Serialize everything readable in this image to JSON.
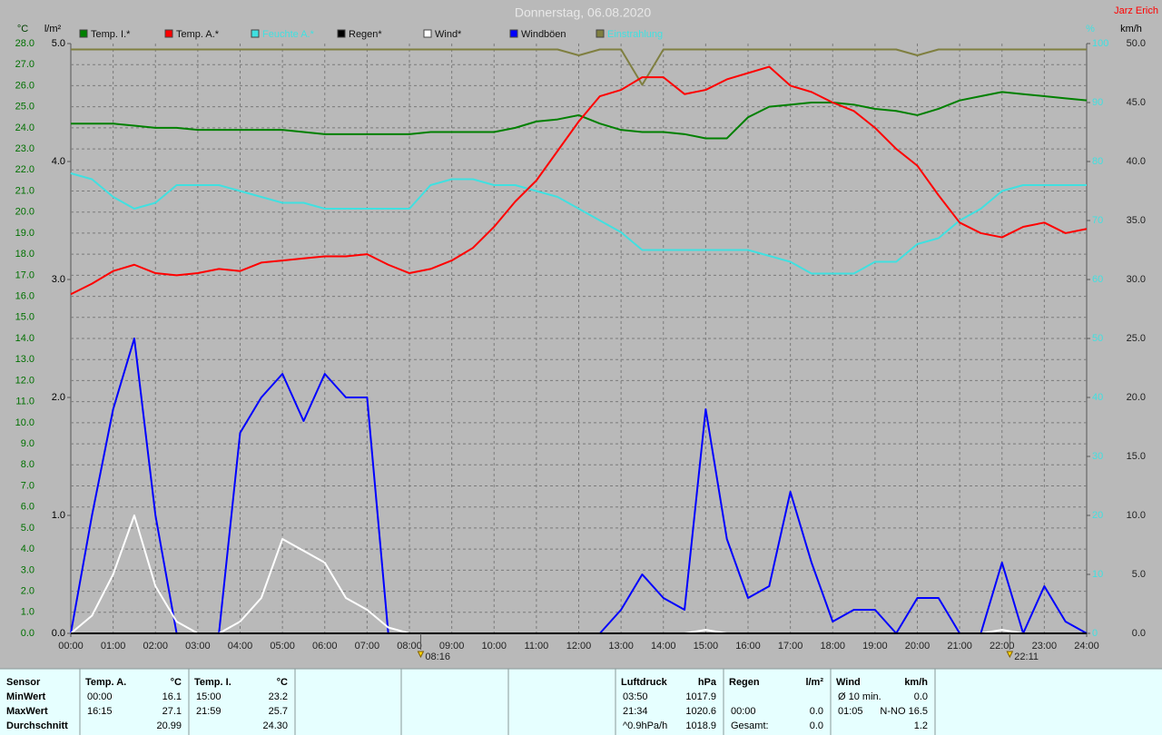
{
  "chart_data": {
    "type": "line",
    "title": "Donnerstag, 06.08.2020",
    "author": "Jarz Erich",
    "ylabel": "°C",
    "y4label": "l/m²",
    "y3label": "%",
    "y2label": "km/h",
    "xlim": [
      0,
      24
    ],
    "xticks": [
      {
        "value": 0,
        "label": "00:00"
      },
      {
        "value": 1,
        "label": "01:00"
      },
      {
        "value": 2,
        "label": "02:00"
      },
      {
        "value": 3,
        "label": "03:00"
      },
      {
        "value": 4,
        "label": "04:00"
      },
      {
        "value": 5,
        "label": "05:00"
      },
      {
        "value": 6,
        "label": "06:00"
      },
      {
        "value": 7,
        "label": "07:00"
      },
      {
        "value": 8,
        "label": "08:00"
      },
      {
        "value": 9,
        "label": "09:00"
      },
      {
        "value": 10,
        "label": "10:00"
      },
      {
        "value": 11,
        "label": "11:00"
      },
      {
        "value": 12,
        "label": "12:00"
      },
      {
        "value": 13,
        "label": "13:00"
      },
      {
        "value": 14,
        "label": "14:00"
      },
      {
        "value": 15,
        "label": "15:00"
      },
      {
        "value": 16,
        "label": "16:00"
      },
      {
        "value": 17,
        "label": "17:00"
      },
      {
        "value": 18,
        "label": "18:00"
      },
      {
        "value": 19,
        "label": "19:00"
      },
      {
        "value": 20,
        "label": "20:00"
      },
      {
        "value": 21,
        "label": "21:00"
      },
      {
        "value": 22,
        "label": "22:00"
      },
      {
        "value": 23,
        "label": "23:00"
      },
      {
        "value": 24,
        "label": "24:00"
      }
    ],
    "ylim": [
      0,
      28
    ],
    "yticks": [
      {
        "value": 0,
        "label": "0.0"
      },
      {
        "value": 1,
        "label": "1.0"
      },
      {
        "value": 2,
        "label": "2.0"
      },
      {
        "value": 3,
        "label": "3.0"
      },
      {
        "value": 4,
        "label": "4.0"
      },
      {
        "value": 5,
        "label": "5.0"
      },
      {
        "value": 6,
        "label": "6.0"
      },
      {
        "value": 7,
        "label": "7.0"
      },
      {
        "value": 8,
        "label": "8.0"
      },
      {
        "value": 9,
        "label": "9.0"
      },
      {
        "value": 10,
        "label": "10.0"
      },
      {
        "value": 11,
        "label": "11.0"
      },
      {
        "value": 12,
        "label": "12.0"
      },
      {
        "value": 13,
        "label": "13.0"
      },
      {
        "value": 14,
        "label": "14.0"
      },
      {
        "value": 15,
        "label": "15.0"
      },
      {
        "value": 16,
        "label": "16.0"
      },
      {
        "value": 17,
        "label": "17.0"
      },
      {
        "value": 18,
        "label": "18.0"
      },
      {
        "value": 19,
        "label": "19.0"
      },
      {
        "value": 20,
        "label": "20.0"
      },
      {
        "value": 21,
        "label": "21.0"
      },
      {
        "value": 22,
        "label": "22.0"
      },
      {
        "value": 23,
        "label": "23.0"
      },
      {
        "value": 24,
        "label": "24.0"
      },
      {
        "value": 25,
        "label": "25.0"
      },
      {
        "value": 26,
        "label": "26.0"
      },
      {
        "value": 27,
        "label": "27.0"
      },
      {
        "value": 28,
        "label": "28.0"
      }
    ],
    "y4lim": [
      0,
      5
    ],
    "y4ticks": [
      {
        "value": 0,
        "label": "0.0"
      },
      {
        "value": 1,
        "label": "1.0"
      },
      {
        "value": 2,
        "label": "2.0"
      },
      {
        "value": 3,
        "label": "3.0"
      },
      {
        "value": 4,
        "label": "4.0"
      },
      {
        "value": 5,
        "label": "5.0"
      }
    ],
    "y3lim": [
      0,
      100
    ],
    "y3ticks": [
      0,
      10,
      20,
      30,
      40,
      50,
      60,
      70,
      80,
      90,
      100
    ],
    "y2lim": [
      0,
      50
    ],
    "y2ticks": [
      {
        "value": 0,
        "label": "0.0"
      },
      {
        "value": 5,
        "label": "5.0"
      },
      {
        "value": 10,
        "label": "10.0"
      },
      {
        "value": 15,
        "label": "15.0"
      },
      {
        "value": 20,
        "label": "20.0"
      },
      {
        "value": 25,
        "label": "25.0"
      },
      {
        "value": 30,
        "label": "30.0"
      },
      {
        "value": 35,
        "label": "35.0"
      },
      {
        "value": 40,
        "label": "40.0"
      },
      {
        "value": 45,
        "label": "45.0"
      },
      {
        "value": 50,
        "label": "50.0"
      }
    ],
    "grid": true,
    "x": [
      0,
      0.5,
      1,
      1.5,
      2,
      2.5,
      3,
      3.5,
      4,
      4.5,
      5,
      5.5,
      6,
      6.5,
      7,
      7.5,
      8,
      8.5,
      9,
      9.5,
      10,
      10.5,
      11,
      11.5,
      12,
      12.5,
      13,
      13.5,
      14,
      14.5,
      15,
      15.5,
      16,
      16.5,
      17,
      17.5,
      18,
      18.5,
      19,
      19.5,
      20,
      20.5,
      21,
      21.5,
      22,
      22.5,
      23,
      23.5,
      24
    ],
    "series": [
      {
        "name": "Temp. I.*",
        "color": "#008000",
        "axis": "y",
        "values": [
          24.2,
          24.2,
          24.2,
          24.1,
          24.0,
          24.0,
          23.9,
          23.9,
          23.9,
          23.9,
          23.9,
          23.8,
          23.7,
          23.7,
          23.7,
          23.7,
          23.7,
          23.8,
          23.8,
          23.8,
          23.8,
          24.0,
          24.3,
          24.4,
          24.6,
          24.2,
          23.9,
          23.8,
          23.8,
          23.7,
          23.5,
          23.5,
          24.5,
          25.0,
          25.1,
          25.2,
          25.2,
          25.1,
          24.9,
          24.8,
          24.6,
          24.9,
          25.3,
          25.5,
          25.7,
          25.6,
          25.5,
          25.4,
          25.3
        ]
      },
      {
        "name": "Temp. A.*",
        "color": "#ff0000",
        "axis": "y",
        "values": [
          16.1,
          16.6,
          17.2,
          17.5,
          17.1,
          17.0,
          17.1,
          17.3,
          17.2,
          17.6,
          17.7,
          17.8,
          17.9,
          17.9,
          18.0,
          17.5,
          17.1,
          17.3,
          17.7,
          18.3,
          19.3,
          20.5,
          21.5,
          22.9,
          24.3,
          25.5,
          25.8,
          26.4,
          26.4,
          25.6,
          25.8,
          26.3,
          26.6,
          26.9,
          26.0,
          25.7,
          25.2,
          24.8,
          24.0,
          23.0,
          22.2,
          20.8,
          19.5,
          19.0,
          18.8,
          19.3,
          19.5,
          19.0,
          19.2
        ]
      },
      {
        "name": "Feuchte A.*",
        "color": "#40e0e0",
        "axis": "y3",
        "values": [
          78,
          77,
          74,
          72,
          73,
          76,
          76,
          76,
          75,
          74,
          73,
          73,
          72,
          72,
          72,
          72,
          72,
          76,
          77,
          77,
          76,
          76,
          75,
          74,
          72,
          70,
          68,
          65,
          65,
          65,
          65,
          65,
          65,
          64,
          63,
          61,
          61,
          61,
          63,
          63,
          66,
          67,
          70,
          72,
          75,
          76,
          76,
          76,
          76
        ]
      },
      {
        "name": "Regen*",
        "color": "#000000",
        "axis": "y4",
        "values": [
          0,
          0,
          0,
          0,
          0,
          0,
          0,
          0,
          0,
          0,
          0,
          0,
          0,
          0,
          0,
          0,
          0,
          0,
          0,
          0,
          0,
          0,
          0,
          0,
          0,
          0,
          0,
          0,
          0,
          0,
          0,
          0,
          0,
          0,
          0,
          0,
          0,
          0,
          0,
          0,
          0,
          0,
          0,
          0,
          0,
          0,
          0,
          0,
          0
        ]
      },
      {
        "name": "Wind*",
        "color": "#ffffff",
        "axis": "y2",
        "values": [
          0,
          1.5,
          5,
          10,
          4,
          1,
          0,
          0,
          1,
          3,
          8,
          7,
          6,
          3,
          2,
          0.5,
          0,
          0,
          0,
          0,
          0,
          0,
          0,
          0,
          0,
          0,
          0,
          0,
          0,
          0,
          0.3,
          0,
          0,
          0,
          0,
          0,
          0,
          0,
          0,
          0,
          0,
          0,
          0,
          0,
          0.3,
          0,
          0,
          0,
          0
        ]
      },
      {
        "name": "Windböen",
        "color": "#0000ff",
        "axis": "y2",
        "values": [
          0,
          10,
          19,
          25,
          10,
          0,
          0,
          0,
          17,
          20,
          22,
          18,
          22,
          20,
          20,
          0,
          0,
          0,
          0,
          0,
          0,
          0,
          0,
          0,
          0,
          0,
          2,
          5,
          3,
          2,
          19,
          8,
          3,
          4,
          12,
          6,
          1,
          2,
          2,
          0,
          3,
          3,
          0,
          0,
          6,
          0,
          4,
          1,
          0
        ]
      },
      {
        "name": "Einstrahlung",
        "color": "#7f7f40",
        "axis": "y3",
        "values": [
          99,
          99,
          99,
          99,
          99,
          99,
          99,
          99,
          99,
          99,
          99,
          99,
          99,
          99,
          99,
          99,
          99,
          99,
          99,
          99,
          99,
          99,
          99,
          99,
          98,
          99,
          99,
          93,
          99,
          99,
          99,
          99,
          99,
          99,
          99,
          99,
          99,
          99,
          99,
          99,
          98,
          99,
          99,
          99,
          99,
          99,
          99,
          99,
          99
        ]
      }
    ],
    "annotations": [
      {
        "x": 8.2667,
        "label": "08:16"
      },
      {
        "x": 22.1833,
        "label": "22:11"
      }
    ]
  },
  "stats": {
    "row_labels": [
      "Sensor",
      "MinWert",
      "MaxWert",
      "Durchschnitt"
    ],
    "panels": [
      {
        "title": "Temp. A.",
        "unit": "°C",
        "min": [
          "00:00",
          "16.1"
        ],
        "max": [
          "16:15",
          "27.1"
        ],
        "avg": [
          "20.99"
        ]
      },
      {
        "title": "Temp. I.",
        "unit": "°C",
        "min": [
          "15:00",
          "23.2"
        ],
        "max": [
          "21:59",
          "25.7"
        ],
        "avg": [
          "24.30"
        ]
      },
      {
        "title": "Luftdruck",
        "unit": "hPa",
        "min": [
          "03:50",
          "1017.9"
        ],
        "max": [
          "21:34",
          "1020.6"
        ],
        "avg": [
          "^0.9hPa/h",
          "1018.9"
        ]
      },
      {
        "title": "Regen",
        "unit": "l/m²",
        "min": [],
        "max": [
          "00:00",
          "0.0"
        ],
        "avg": [
          "Gesamt:",
          "0.0"
        ]
      },
      {
        "title": "Wind",
        "unit": "km/h",
        "min": [
          "Ø 10 min.",
          "0.0"
        ],
        "max": [
          "01:05",
          "N-NO 16.5"
        ],
        "avg": [
          "1.2"
        ]
      }
    ]
  }
}
